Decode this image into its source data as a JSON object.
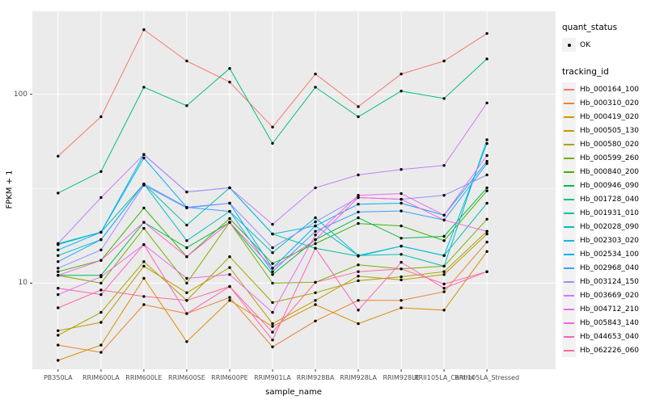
{
  "chart_data": {
    "type": "line",
    "title": "",
    "xlabel": "sample_name",
    "ylabel": "FPKM + 1",
    "x_axis": {
      "categories": [
        "PB350LA",
        "RRIM600LA",
        "RRIM600LE",
        "RRIM600SE",
        "RRIM600PE",
        "RRIM901LA",
        "RRIM928BA",
        "RRIM928LA",
        "RRIM928LE",
        "RRII105LA_Control",
        "RRII105LA_Stressed"
      ]
    },
    "y_axis": {
      "scale": "log10",
      "ticks": [
        10,
        100
      ],
      "tick_labels": [
        "10",
        "100"
      ],
      "minor_gridlines": [
        31.6
      ],
      "range": [
        3.5,
        275
      ]
    },
    "grid": true,
    "legend_position": "right",
    "point_marker": {
      "shape": "circle",
      "color": "#000000"
    },
    "legend": {
      "quant_status_title": "quant_status",
      "quant_status_items": [
        {
          "label": "OK"
        }
      ],
      "tracking_id_title": "tracking_id"
    },
    "colors": {
      "figure_bg": "#FFFFFF",
      "panel_bg": "#EBEBEB",
      "grid": "#FFFFFF",
      "tick_mark": "#333333",
      "tick_label": "#4D4D4D",
      "axis_title": "#000000",
      "legend_key_bg": "#F2F2F2"
    },
    "series": [
      {
        "name": "Hb_000164_100",
        "color": "#F8766D",
        "values": [
          47,
          76,
          220,
          150,
          116,
          67,
          128,
          86,
          128,
          150,
          210
        ]
      },
      {
        "name": "Hb_000310_020",
        "color": "#EA8331",
        "values": [
          4.7,
          4.3,
          7.7,
          6.9,
          8.4,
          4.6,
          6.3,
          8.1,
          8.1,
          9.0,
          16.5
        ]
      },
      {
        "name": "Hb_000419_020",
        "color": "#D89000",
        "values": [
          3.9,
          4.7,
          10.6,
          4.9,
          8.1,
          5.9,
          7.7,
          6.1,
          7.4,
          7.2,
          14.7
        ]
      },
      {
        "name": "Hb_000505_130",
        "color": "#C09B00",
        "values": [
          5.6,
          6.2,
          12.3,
          8.9,
          12.1,
          6.1,
          8.1,
          10.9,
          10.4,
          11.1,
          18.2
        ]
      },
      {
        "name": "Hb_000580_020",
        "color": "#A3A500",
        "values": [
          5.3,
          7.0,
          13.0,
          8.1,
          13.8,
          7.9,
          8.9,
          10.3,
          10.8,
          11.5,
          18.8
        ]
      },
      {
        "name": "Hb_000599_260",
        "color": "#7CAE00",
        "values": [
          11.0,
          10.0,
          19.5,
          10.0,
          21.0,
          10.0,
          10.1,
          12.5,
          11.9,
          12.3,
          21.8
        ]
      },
      {
        "name": "Hb_000840_200",
        "color": "#39B600",
        "values": [
          11.5,
          13.2,
          25.0,
          13.8,
          22.0,
          12.7,
          16.2,
          20.7,
          20.1,
          16.8,
          30.8
        ]
      },
      {
        "name": "Hb_000946_090",
        "color": "#00BB4E",
        "values": [
          11.0,
          11.0,
          21.0,
          15.4,
          21.0,
          11.1,
          17.0,
          22.2,
          17.3,
          17.7,
          32.0
        ]
      },
      {
        "name": "Hb_001728_040",
        "color": "#00BF7D",
        "values": [
          30,
          39,
          109,
          87,
          137,
          55,
          109,
          76,
          104,
          95,
          154
        ]
      },
      {
        "name": "Hb_001931_010",
        "color": "#00C1A3",
        "values": [
          16.0,
          18.6,
          33.5,
          20.3,
          32.0,
          18.2,
          15.3,
          13.9,
          15.7,
          14.0,
          26.5
        ]
      },
      {
        "name": "Hb_002028_090",
        "color": "#00BFC4",
        "values": [
          14.0,
          17.0,
          33.5,
          16.8,
          24.0,
          14.5,
          22.2,
          14.0,
          14.2,
          12.3,
          57.5
        ]
      },
      {
        "name": "Hb_002303_020",
        "color": "#00BAE0",
        "values": [
          16.2,
          18.6,
          48.0,
          30.4,
          32.0,
          18.2,
          20.1,
          14.0,
          15.7,
          14.0,
          54.9
        ]
      },
      {
        "name": "Hb_002534_100",
        "color": "#00B0F6",
        "values": [
          15.0,
          18.6,
          46.0,
          25.2,
          26.5,
          12.0,
          20.1,
          26.2,
          26.5,
          22.9,
          44.2
        ]
      },
      {
        "name": "Hb_002968_040",
        "color": "#35A2FF",
        "values": [
          13.0,
          17.0,
          33.5,
          25.2,
          24.0,
          11.5,
          18.8,
          23.8,
          24.1,
          21.6,
          43.0
        ]
      },
      {
        "name": "Hb_003124_150",
        "color": "#9590FF",
        "values": [
          12.0,
          15.0,
          33.0,
          25.0,
          26.5,
          15.4,
          21.1,
          28.4,
          27.8,
          29.2,
          37.4
        ]
      },
      {
        "name": "Hb_003669_020",
        "color": "#C77CFF",
        "values": [
          16.2,
          28.4,
          48.0,
          30.4,
          32.0,
          20.5,
          32.0,
          37.4,
          40.0,
          42.0,
          90.0
        ]
      },
      {
        "name": "Hb_004712_210",
        "color": "#E76BF3",
        "values": [
          8.7,
          10.8,
          16.0,
          10.6,
          11.1,
          7.0,
          18.0,
          29.2,
          29.8,
          22.9,
          47.4
        ]
      },
      {
        "name": "Hb_005843_140",
        "color": "#FA62DB",
        "values": [
          11.0,
          13.2,
          21.0,
          13.8,
          21.0,
          12.0,
          17.0,
          28.4,
          27.8,
          21.6,
          18.8
        ]
      },
      {
        "name": "Hb_044653_040",
        "color": "#FF62BC",
        "values": [
          9.4,
          8.7,
          16.0,
          6.9,
          9.6,
          5.0,
          15.3,
          7.2,
          12.9,
          9.4,
          11.5
        ]
      },
      {
        "name": "Hb_062226_060",
        "color": "#FF6A98",
        "values": [
          7.4,
          9.2,
          8.5,
          8.1,
          9.6,
          5.5,
          10.1,
          11.5,
          11.9,
          9.9,
          11.5
        ]
      }
    ]
  }
}
